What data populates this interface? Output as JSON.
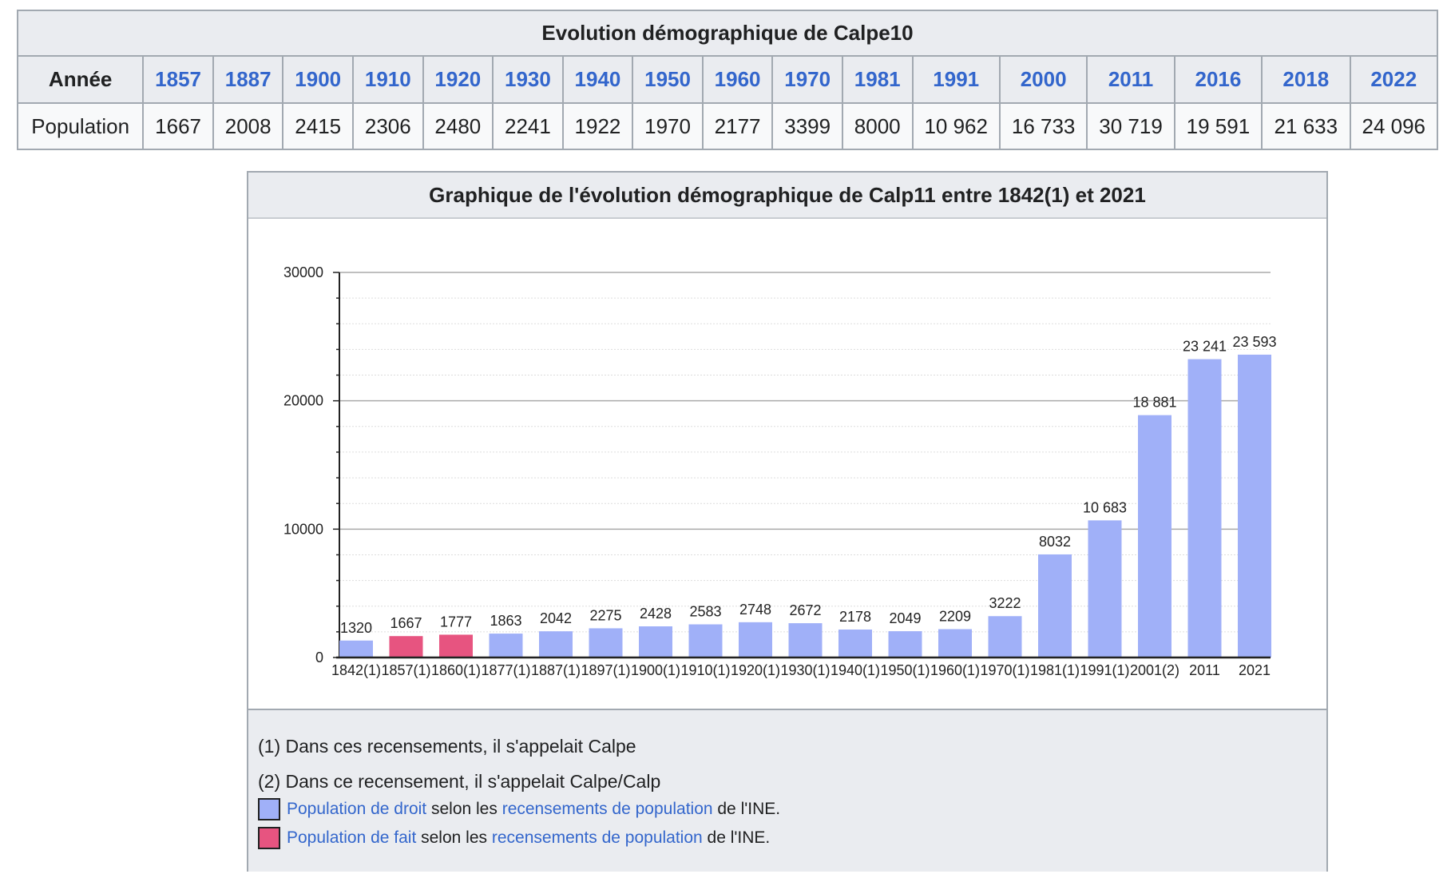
{
  "table": {
    "caption": "Evolution démographique de Calpe10",
    "row_header_year": "Année",
    "row_header_pop": "Population",
    "years": [
      "1857",
      "1887",
      "1900",
      "1910",
      "1920",
      "1930",
      "1940",
      "1950",
      "1960",
      "1970",
      "1981",
      "1991",
      "2000",
      "2011",
      "2016",
      "2018",
      "2022"
    ],
    "population": [
      "1667",
      "2008",
      "2415",
      "2306",
      "2480",
      "2241",
      "1922",
      "1970",
      "2177",
      "3399",
      "8000",
      "10 962",
      "16 733",
      "30 719",
      "19 591",
      "21 633",
      "24 096"
    ]
  },
  "chart_box": {
    "title": "Graphique de l'évolution démographique de Calp11  entre 1842(1) et 2021",
    "footnotes": [
      "(1) Dans ces recensements, il s'appelait Calpe",
      "(2) Dans ce recensement, il s'appelait Calpe/Calp"
    ],
    "legend": [
      {
        "link1": "Population de droit",
        "text1": " selon les ",
        "link2": "recensements de population",
        "text2": " de l'INE.",
        "color": "#a0b0f8"
      },
      {
        "link1": "Population de fait",
        "text1": " selon les ",
        "link2": "recensements de population",
        "text2": " de l'INE.",
        "color": "#e75480"
      }
    ]
  },
  "chart_data": {
    "type": "bar",
    "categories": [
      "1842(1)",
      "1857(1)",
      "1860(1)",
      "1877(1)",
      "1887(1)",
      "1897(1)",
      "1900(1)",
      "1910(1)",
      "1920(1)",
      "1930(1)",
      "1940(1)",
      "1950(1)",
      "1960(1)",
      "1970(1)",
      "1981(1)",
      "1991(1)",
      "2001(2)",
      "2011",
      "2021"
    ],
    "values": [
      1320,
      1667,
      1777,
      1863,
      2042,
      2275,
      2428,
      2583,
      2748,
      2672,
      2178,
      2049,
      2209,
      3222,
      8032,
      10683,
      18881,
      23241,
      23593
    ],
    "labels": [
      "1320",
      "1667",
      "1777",
      "1863",
      "2042",
      "2275",
      "2428",
      "2583",
      "2748",
      "2672",
      "2178",
      "2049",
      "2209",
      "3222",
      "8032",
      "10 683",
      "18 881",
      "23 241",
      "23 593"
    ],
    "series_type": [
      "droit",
      "fait",
      "fait",
      "droit",
      "droit",
      "droit",
      "droit",
      "droit",
      "droit",
      "droit",
      "droit",
      "droit",
      "droit",
      "droit",
      "droit",
      "droit",
      "droit",
      "droit",
      "droit"
    ],
    "colors": {
      "droit": "#a0b0f8",
      "fait": "#e75480"
    },
    "yticks": [
      "0",
      "10000",
      "20000",
      "30000"
    ],
    "ylim": [
      0,
      30000
    ],
    "grid": true
  }
}
